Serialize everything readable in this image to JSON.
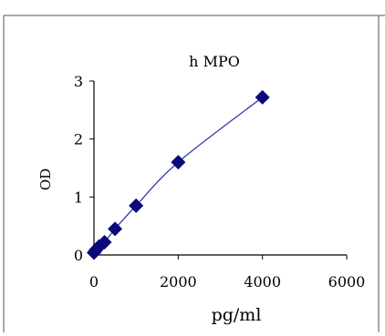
{
  "chart_data": {
    "type": "scatter",
    "title": "h MPO",
    "xlabel": "pg/ml",
    "ylabel": "OD",
    "xlim": [
      0,
      6000
    ],
    "ylim": [
      0,
      3
    ],
    "x_ticks": [
      0,
      2000,
      4000,
      6000
    ],
    "y_ticks": [
      0,
      1,
      2,
      3
    ],
    "grid": false,
    "legend": "none",
    "trendline": true,
    "marker": "diamond",
    "colors": {
      "series": "#0a0a7a",
      "line": "#3b3bb5",
      "axes": "#000000"
    },
    "series": [
      {
        "x": [
          0,
          31.25,
          62.5,
          125,
          250,
          500,
          1000,
          2000,
          4000
        ],
        "y": [
          0.04,
          0.07,
          0.1,
          0.15,
          0.22,
          0.45,
          0.85,
          1.6,
          2.72
        ]
      }
    ]
  }
}
